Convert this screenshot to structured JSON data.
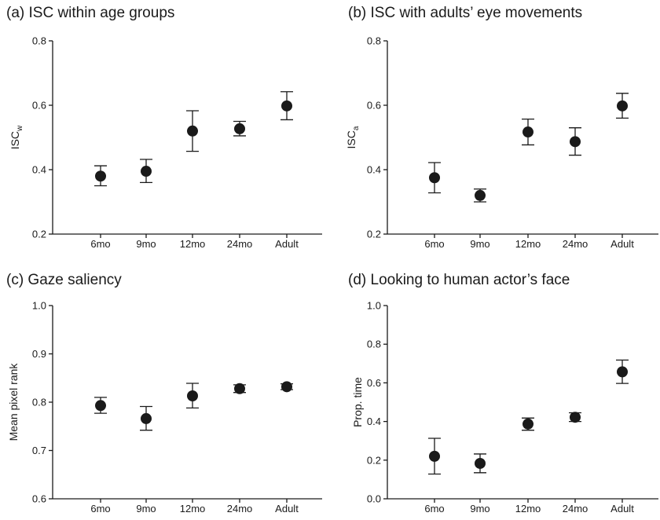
{
  "chart_data": [
    {
      "type": "scatter",
      "title": "(a) ISC within age groups",
      "ylabel": "ISC",
      "ylabel_sub": "w",
      "xlabel": "",
      "categories": [
        "6mo",
        "9mo",
        "12mo",
        "24mo",
        "Adult"
      ],
      "values": [
        0.38,
        0.395,
        0.52,
        0.527,
        0.598
      ],
      "error_low": [
        0.35,
        0.36,
        0.457,
        0.505,
        0.555
      ],
      "error_high": [
        0.412,
        0.432,
        0.583,
        0.55,
        0.642
      ],
      "ylim": [
        0.2,
        0.8
      ],
      "yticks": [
        "0.2",
        "0.4",
        "0.6",
        "0.8"
      ],
      "grid": false
    },
    {
      "type": "scatter",
      "title": "(b) ISC with adults’ eye movements",
      "ylabel": "ISC",
      "ylabel_sub": "a",
      "xlabel": "",
      "categories": [
        "6mo",
        "9mo",
        "12mo",
        "24mo",
        "Adult"
      ],
      "values": [
        0.375,
        0.32,
        0.517,
        0.487,
        0.598
      ],
      "error_low": [
        0.328,
        0.3,
        0.477,
        0.445,
        0.56
      ],
      "error_high": [
        0.422,
        0.34,
        0.557,
        0.53,
        0.637
      ],
      "ylim": [
        0.2,
        0.8
      ],
      "yticks": [
        "0.2",
        "0.4",
        "0.6",
        "0.8"
      ],
      "grid": false
    },
    {
      "type": "scatter",
      "title": "(c) Gaze saliency",
      "ylabel": "Mean pixel rank",
      "ylabel_sub": "",
      "xlabel": "",
      "categories": [
        "6mo",
        "9mo",
        "12mo",
        "24mo",
        "Adult"
      ],
      "values": [
        0.793,
        0.766,
        0.813,
        0.828,
        0.832
      ],
      "error_low": [
        0.777,
        0.742,
        0.788,
        0.82,
        0.826
      ],
      "error_high": [
        0.81,
        0.791,
        0.839,
        0.836,
        0.838
      ],
      "ylim": [
        0.6,
        1.0
      ],
      "yticks": [
        "0.6",
        "0.7",
        "0.8",
        "0.9",
        "1.0"
      ],
      "grid": false
    },
    {
      "type": "scatter",
      "title": "(d) Looking to human actor’s face",
      "ylabel": "Prop. time",
      "ylabel_sub": "",
      "xlabel": "",
      "categories": [
        "6mo",
        "9mo",
        "12mo",
        "24mo",
        "Adult"
      ],
      "values": [
        0.22,
        0.183,
        0.387,
        0.422,
        0.657
      ],
      "error_low": [
        0.128,
        0.135,
        0.355,
        0.4,
        0.597
      ],
      "error_high": [
        0.313,
        0.232,
        0.418,
        0.445,
        0.718
      ],
      "ylim": [
        0.0,
        1.0
      ],
      "yticks": [
        "0.0",
        "0.2",
        "0.4",
        "0.6",
        "0.8",
        "1.0"
      ],
      "grid": false
    }
  ]
}
